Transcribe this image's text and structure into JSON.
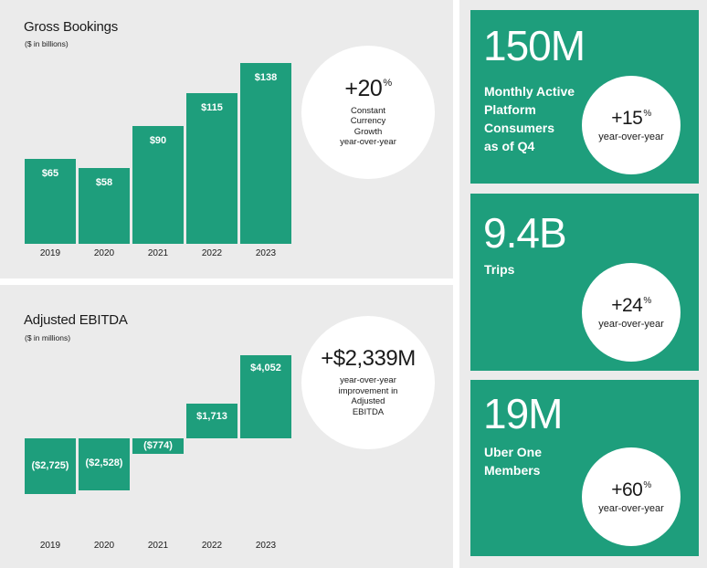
{
  "gross_bookings": {
    "title": "Gross Bookings",
    "subtitle": "($ in billions)",
    "circle": {
      "value": "+20",
      "suffix": "%",
      "desc": [
        "Constant",
        "Currency",
        "Growth",
        "year-over-year"
      ]
    }
  },
  "adjusted_ebitda": {
    "title": "Adjusted EBITDA",
    "subtitle": "($ in millions)",
    "circle": {
      "value": "+$2,339M",
      "desc": [
        "year-over-year",
        "improvement in",
        "Adjusted",
        "EBITDA"
      ]
    }
  },
  "cards": [
    {
      "big": "150M",
      "label": [
        "Monthly Active",
        "Platform",
        "Consumers",
        "as of Q4"
      ],
      "growth": "+15",
      "suffix": "%",
      "growth_desc": "year-over-year"
    },
    {
      "big": "9.4B",
      "label": [
        "Trips"
      ],
      "growth": "+24",
      "suffix": "%",
      "growth_desc": "year-over-year"
    },
    {
      "big": "19M",
      "label": [
        "Uber One",
        "Members"
      ],
      "growth": "+60",
      "suffix": "%",
      "growth_desc": "year-over-year"
    }
  ],
  "chart_data": [
    {
      "type": "bar",
      "title": "Gross Bookings",
      "subtitle": "($ in billions)",
      "categories": [
        "2019",
        "2020",
        "2021",
        "2022",
        "2023"
      ],
      "values": [
        65,
        58,
        90,
        115,
        138
      ],
      "value_labels": [
        "$65",
        "$58",
        "$90",
        "$115",
        "$138"
      ],
      "ylim": [
        0,
        150
      ],
      "color": "#1e9e7c"
    },
    {
      "type": "bar",
      "title": "Adjusted EBITDA",
      "subtitle": "($ in millions)",
      "categories": [
        "2019",
        "2020",
        "2021",
        "2022",
        "2023"
      ],
      "values": [
        -2725,
        -2528,
        -774,
        1713,
        4052
      ],
      "value_labels": [
        "($2,725)",
        "($2,528)",
        "($774)",
        "$1,713",
        "$4,052"
      ],
      "color": "#1e9e7c"
    }
  ]
}
